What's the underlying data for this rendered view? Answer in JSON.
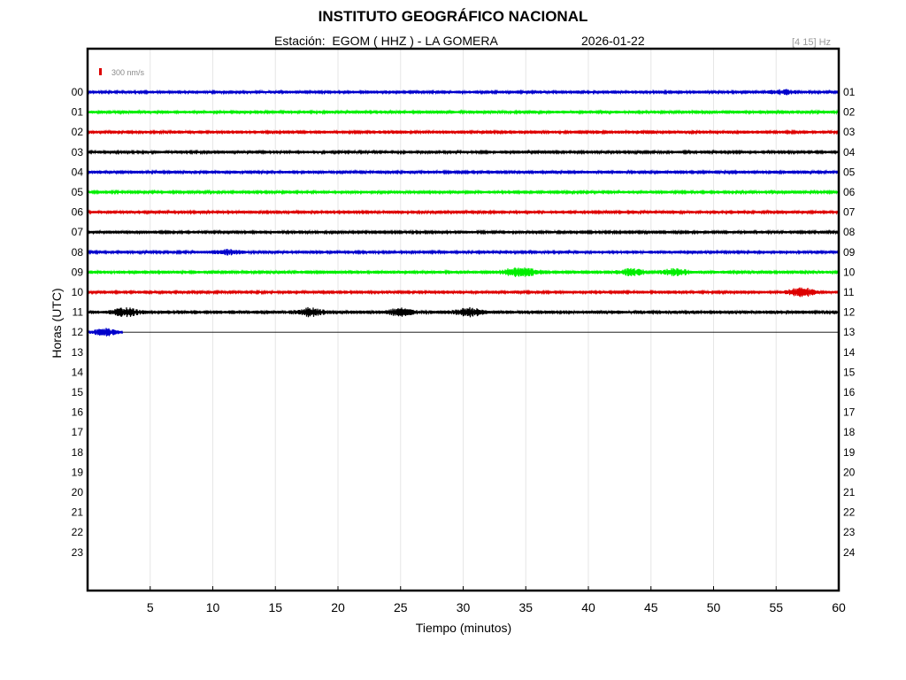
{
  "header": {
    "title": "INSTITUTO GEOGRÁFICO NACIONAL",
    "station_label": "Estación:",
    "station": "EGOM ( HHZ ) - LA GOMERA",
    "date": "2026-01-22",
    "filter": "[4 15] Hz"
  },
  "colors": {
    "trace_cycle": [
      "#0000cc",
      "#00ee00",
      "#dd0000",
      "#000000"
    ],
    "grid": "#e6e6e6",
    "scale_bar": "#dd0000"
  },
  "chart_data": {
    "type": "line",
    "title": "INSTITUTO GEOGRÁFICO NACIONAL",
    "xlabel": "Tiempo (minutos)",
    "ylabel": "Horas (UTC)",
    "xlim": [
      0,
      60
    ],
    "xticks": [
      5,
      10,
      15,
      20,
      25,
      30,
      35,
      40,
      45,
      50,
      55,
      60
    ],
    "grid": true,
    "scale_label": "300 nm/s",
    "left_hour_labels": [
      "00",
      "01",
      "02",
      "03",
      "04",
      "05",
      "06",
      "07",
      "08",
      "09",
      "10",
      "11",
      "12",
      "13",
      "14",
      "15",
      "16",
      "17",
      "18",
      "19",
      "20",
      "21",
      "22",
      "23"
    ],
    "right_hour_labels": [
      "01",
      "02",
      "03",
      "04",
      "05",
      "06",
      "07",
      "08",
      "09",
      "10",
      "11",
      "12",
      "13",
      "14",
      "15",
      "16",
      "17",
      "18",
      "19",
      "20",
      "21",
      "22",
      "23",
      "24"
    ],
    "traces": [
      {
        "hour": "00",
        "start": 0,
        "end": 60,
        "amplitude": 1.6,
        "bursts": [
          {
            "t": 55.5,
            "a": 2.5
          }
        ]
      },
      {
        "hour": "01",
        "start": 0,
        "end": 60,
        "amplitude": 1.6,
        "bursts": []
      },
      {
        "hour": "02",
        "start": 0,
        "end": 60,
        "amplitude": 1.7,
        "bursts": []
      },
      {
        "hour": "03",
        "start": 0,
        "end": 60,
        "amplitude": 1.5,
        "bursts": []
      },
      {
        "hour": "04",
        "start": 0,
        "end": 60,
        "amplitude": 1.6,
        "bursts": []
      },
      {
        "hour": "05",
        "start": 0,
        "end": 60,
        "amplitude": 1.5,
        "bursts": []
      },
      {
        "hour": "06",
        "start": 0,
        "end": 60,
        "amplitude": 1.5,
        "bursts": []
      },
      {
        "hour": "07",
        "start": 0,
        "end": 60,
        "amplitude": 1.4,
        "bursts": []
      },
      {
        "hour": "08",
        "start": 0,
        "end": 60,
        "amplitude": 1.6,
        "bursts": [
          {
            "t": 11.2,
            "a": 2.2
          }
        ]
      },
      {
        "hour": "09",
        "start": 0,
        "end": 60,
        "amplitude": 1.8,
        "bursts": [
          {
            "t": 34.0,
            "a": 3.0
          },
          {
            "t": 35.2,
            "a": 3.0
          },
          {
            "t": 43.5,
            "a": 3.0
          },
          {
            "t": 47.0,
            "a": 3.5
          }
        ]
      },
      {
        "hour": "10",
        "start": 0,
        "end": 60,
        "amplitude": 1.6,
        "bursts": [
          {
            "t": 57.0,
            "a": 5.0
          }
        ]
      },
      {
        "hour": "11",
        "start": 0,
        "end": 60,
        "amplitude": 2.0,
        "bursts": [
          {
            "t": 3.0,
            "a": 4.0
          },
          {
            "t": 17.8,
            "a": 4.0
          },
          {
            "t": 25.0,
            "a": 3.5
          },
          {
            "t": 30.5,
            "a": 4.0
          }
        ]
      },
      {
        "hour": "12",
        "start": 0,
        "end": 2.8,
        "amplitude": 2.0,
        "bursts": [
          {
            "t": 1.5,
            "a": 3.0
          }
        ]
      }
    ]
  }
}
